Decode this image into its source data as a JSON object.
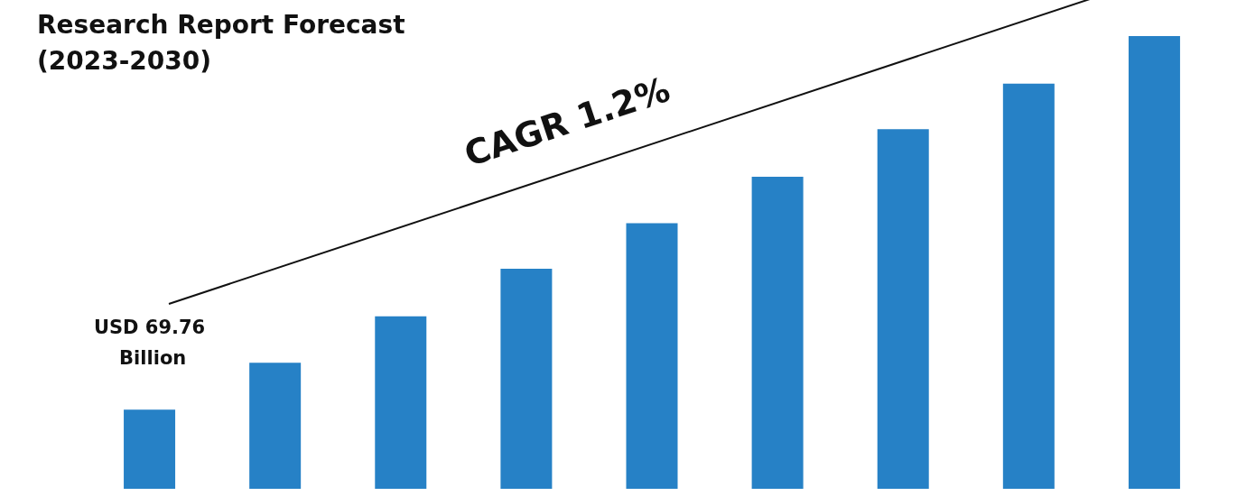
{
  "chart_data": {
    "type": "bar",
    "title": "Research Report Forecast (2023-2030)",
    "categories": [
      null,
      null,
      null,
      null,
      null,
      null,
      null,
      null,
      null
    ],
    "values": [
      69.76,
      111,
      152,
      194,
      234,
      275,
      317,
      357,
      399
    ],
    "color": "#2681c6",
    "tick_labels": false,
    "value_labels": [
      "USD 69.76 Billion",
      null,
      null,
      null,
      null,
      null,
      null,
      null,
      null
    ],
    "annotations": [
      "CAGR 1.2%"
    ]
  }
}
